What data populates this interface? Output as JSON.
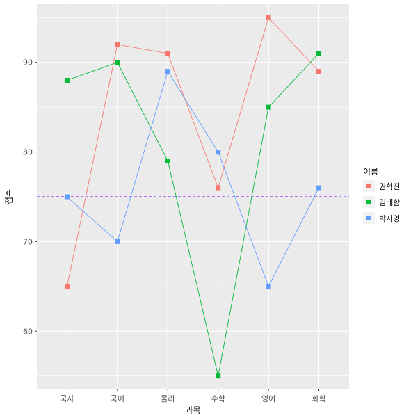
{
  "chart_data": {
    "type": "line",
    "xlabel": "과목",
    "ylabel": "점수",
    "categories": [
      "국사",
      "국어",
      "물리",
      "수학",
      "영어",
      "화학"
    ],
    "ylim": [
      53.5,
      96.5
    ],
    "yticks": [
      60,
      70,
      80,
      90
    ],
    "grid": true,
    "legend": {
      "title": "이름",
      "placement": "right"
    },
    "series": [
      {
        "name": "권혁진",
        "color": "#F8766D",
        "values": [
          65,
          92,
          91,
          76,
          95,
          89
        ]
      },
      {
        "name": "김태함",
        "color": "#00BA38",
        "values": [
          88,
          90,
          79,
          55,
          85,
          91
        ]
      },
      {
        "name": "박지영",
        "color": "#619CFF",
        "values": [
          75,
          70,
          89,
          80,
          65,
          76
        ]
      }
    ],
    "reference_line": {
      "y": 75,
      "color": "#7F00FF",
      "style": "dashed"
    }
  }
}
